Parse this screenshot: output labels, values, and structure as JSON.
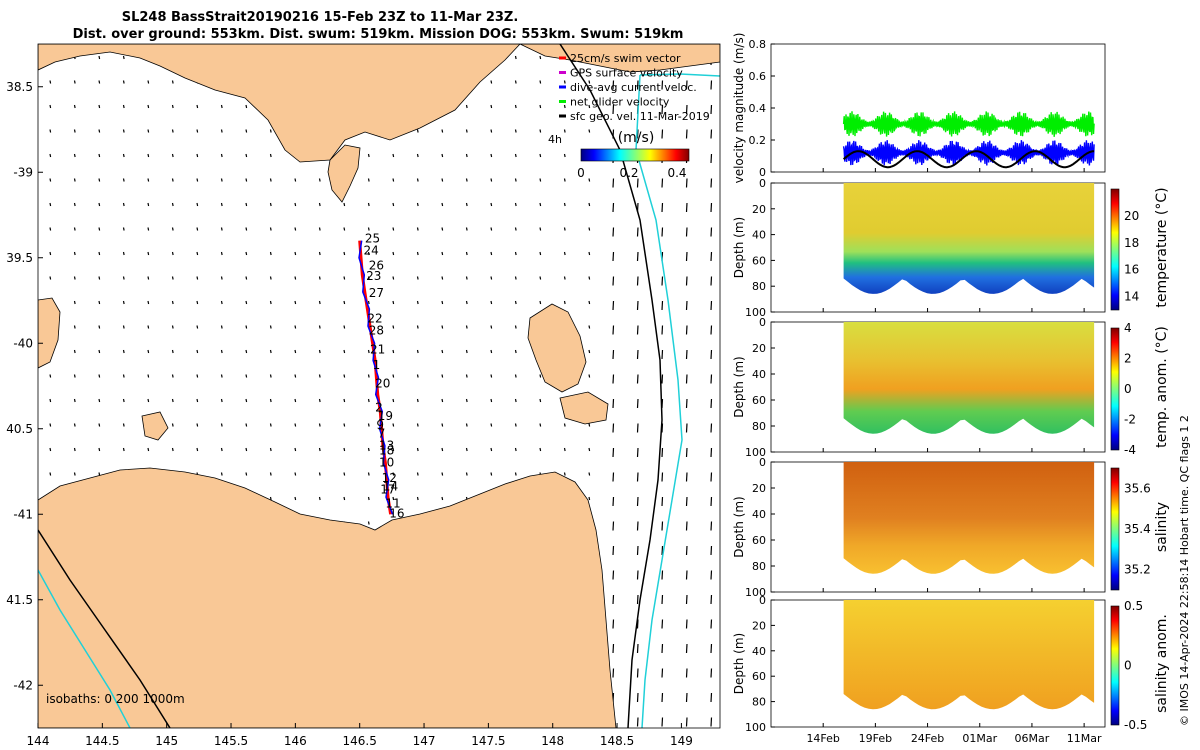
{
  "title": {
    "line1": "SL248 BassStrait20190216 15-Feb 23Z to 11-Mar 23Z.",
    "line2": "Dist. over ground: 553km. Dist. swum: 519km. Mission DOG: 553km. Swum: 519km"
  },
  "credit": "© IMOS 14-Apr-2024 22:58:14 Hobart time. QC flags 1  2",
  "colors": {
    "land": "#f9c896",
    "track_red": "#ff0000",
    "track_blue": "#0000ff",
    "net": "#00ee00",
    "isobath_shallow": "#20d0d8",
    "isobath_deep": "#000000"
  },
  "chart_data": [
    {
      "type": "map",
      "xlim": [
        144,
        149.3
      ],
      "ylim": [
        -42.25,
        -38.25
      ],
      "xticks": [
        144,
        144.5,
        145,
        145.5,
        146,
        146.5,
        147,
        147.5,
        148,
        148.5,
        149
      ],
      "xtick_labels": [
        "144",
        "144.5",
        "145",
        "145.5",
        "146",
        "146.5",
        "147",
        "147.5",
        "148",
        "148.5",
        "149"
      ],
      "yticks": [
        -38.5,
        -39,
        -39.5,
        -40,
        -40.5,
        -41,
        -41.5,
        -42
      ],
      "ytick_labels": [
        "38.5",
        "-39",
        "39.5",
        "-40",
        "40.5",
        "-41",
        "41.5",
        "-42"
      ],
      "legend": {
        "placement": "top-right",
        "entries": [
          {
            "label": "25cm/s swim vector",
            "color": "#ff0000"
          },
          {
            "label": "GPS surface velocity",
            "color": "#cc00cc"
          },
          {
            "label": "dive-avg current veloc.",
            "color": "#0000ff"
          },
          {
            "label": "net glider velocity",
            "color": "#00ee00"
          },
          {
            "label": "sfc geo. vel. 11-Mar-2019",
            "color": "#000000"
          }
        ],
        "prefix": "4h"
      },
      "colorbar": {
        "label": "(m/s)",
        "ticks": [
          "0",
          "0.2",
          "0.4"
        ],
        "range": [
          0,
          0.45
        ]
      },
      "isobath_label": "isobaths: 0   200  1000m",
      "track": [
        [
          146.74,
          -41.0
        ],
        [
          146.72,
          -40.9
        ],
        [
          146.71,
          -40.8
        ],
        [
          146.7,
          -40.7
        ],
        [
          146.68,
          -40.6
        ],
        [
          146.67,
          -40.5
        ],
        [
          146.66,
          -40.4
        ],
        [
          146.64,
          -40.3
        ],
        [
          146.63,
          -40.2
        ],
        [
          146.62,
          -40.1
        ],
        [
          146.6,
          -40.0
        ],
        [
          146.58,
          -39.9
        ],
        [
          146.56,
          -39.8
        ],
        [
          146.54,
          -39.7
        ],
        [
          146.52,
          -39.6
        ],
        [
          146.51,
          -39.5
        ],
        [
          146.5,
          -39.4
        ]
      ],
      "waypoint_labels": [
        {
          "text": "25",
          "lon": 146.54,
          "lat": -39.41
        },
        {
          "text": "24",
          "lon": 146.53,
          "lat": -39.48
        },
        {
          "text": "26",
          "lon": 146.57,
          "lat": -39.57
        },
        {
          "text": "23",
          "lon": 146.55,
          "lat": -39.63
        },
        {
          "text": "27",
          "lon": 146.57,
          "lat": -39.73
        },
        {
          "text": "22",
          "lon": 146.56,
          "lat": -39.88
        },
        {
          "text": "28",
          "lon": 146.57,
          "lat": -39.95
        },
        {
          "text": "21",
          "lon": 146.58,
          "lat": -40.06
        },
        {
          "text": "1",
          "lon": 146.6,
          "lat": -40.15
        },
        {
          "text": "20",
          "lon": 146.62,
          "lat": -40.26
        },
        {
          "text": "2",
          "lon": 146.62,
          "lat": -40.4
        },
        {
          "text": "19",
          "lon": 146.64,
          "lat": -40.45
        },
        {
          "text": "9",
          "lon": 146.63,
          "lat": -40.5
        },
        {
          "text": "7",
          "lon": 146.64,
          "lat": -40.55
        },
        {
          "text": "13",
          "lon": 146.65,
          "lat": -40.62
        },
        {
          "text": "18",
          "lon": 146.65,
          "lat": -40.65
        },
        {
          "text": "10",
          "lon": 146.65,
          "lat": -40.72
        },
        {
          "text": "12",
          "lon": 146.67,
          "lat": -40.81
        },
        {
          "text": "14",
          "lon": 146.68,
          "lat": -40.86
        },
        {
          "text": "17",
          "lon": 146.66,
          "lat": -40.88
        },
        {
          "text": "11",
          "lon": 146.7,
          "lat": -40.96
        },
        {
          "text": "16",
          "lon": 146.73,
          "lat": -41.02
        }
      ]
    },
    {
      "type": "line",
      "x_dates": [
        "2019-02-14",
        "2019-02-19",
        "2019-02-24",
        "2019-03-01",
        "2019-03-06",
        "2019-03-11"
      ],
      "xtick_labels": [
        "14Feb",
        "19Feb",
        "24Feb",
        "01Mar",
        "06Mar",
        "11Mar"
      ],
      "ylabel": "velocity magnitude (m/s)",
      "ylim": [
        0,
        0.8
      ],
      "yticks": [
        "0",
        "0.2",
        "0.4",
        "0.6",
        "0.8"
      ],
      "series": [
        {
          "color": "#00ee00",
          "approx_mean": 0.3,
          "approx_amplitude": 0.08
        },
        {
          "color": "#0000ff",
          "approx_mean": 0.12,
          "approx_amplitude": 0.08
        },
        {
          "color": "#000000",
          "approx_mean": 0.08,
          "approx_amplitude": 0.05
        }
      ]
    },
    {
      "type": "heatmap",
      "name": "temperature",
      "ylabel": "Depth (m)",
      "ylim": [
        100,
        0
      ],
      "yticks": [
        "0",
        "20",
        "40",
        "60",
        "80",
        "100"
      ],
      "colorbar_label": "temperature (°C)",
      "colorbar_ticks": [
        "14",
        "16",
        "18",
        "20"
      ],
      "crange": [
        13,
        22
      ]
    },
    {
      "type": "heatmap",
      "name": "temp_anom",
      "ylabel": "Depth (m)",
      "ylim": [
        100,
        0
      ],
      "yticks": [
        "0",
        "20",
        "40",
        "60",
        "80",
        "100"
      ],
      "colorbar_label": "temp. anom. (°C)",
      "colorbar_ticks": [
        "-4",
        "-2",
        "0",
        "2",
        "4"
      ],
      "crange": [
        -4,
        4
      ]
    },
    {
      "type": "heatmap",
      "name": "salinity",
      "ylabel": "Depth (m)",
      "ylim": [
        100,
        0
      ],
      "yticks": [
        "0",
        "20",
        "40",
        "60",
        "80",
        "100"
      ],
      "colorbar_label": "salinity",
      "colorbar_ticks": [
        "35.2",
        "35.4",
        "35.6"
      ],
      "crange": [
        35.1,
        35.7
      ]
    },
    {
      "type": "heatmap",
      "name": "salinity_anom",
      "ylabel": "Depth (m)",
      "ylim": [
        100,
        0
      ],
      "yticks": [
        "0",
        "20",
        "40",
        "60",
        "80",
        "100"
      ],
      "colorbar_label": "salinity anom.",
      "colorbar_ticks": [
        "-0.5",
        "0",
        "0.5"
      ],
      "crange": [
        -0.5,
        0.5
      ]
    }
  ]
}
